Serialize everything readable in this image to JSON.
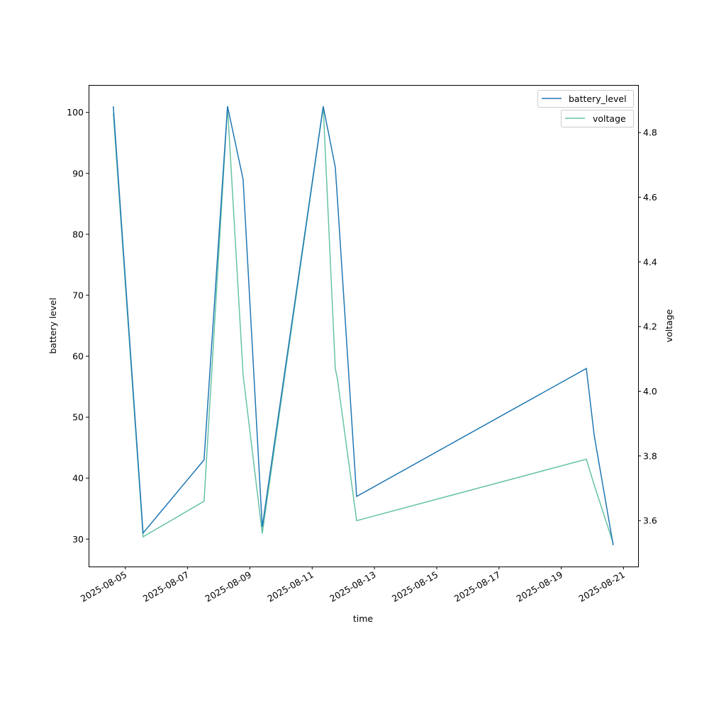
{
  "chart_data": {
    "type": "line",
    "title": "",
    "xlabel": "time",
    "ylabel": "battery level",
    "y2label": "voltage",
    "xlim": [
      "2025-08-03T19:40",
      "2025-08-21T11:15"
    ],
    "ylim": [
      25.5,
      104.5
    ],
    "y2lim": [
      3.458,
      4.947
    ],
    "grid": false,
    "legend_placement": "top-right",
    "x_ticks": [
      "2025-08-05",
      "2025-08-07",
      "2025-08-09",
      "2025-08-11",
      "2025-08-13",
      "2025-08-15",
      "2025-08-17",
      "2025-08-19",
      "2025-08-21"
    ],
    "y_ticks": [
      30,
      40,
      50,
      60,
      70,
      80,
      90,
      100
    ],
    "y2_ticks": [
      "3.6",
      "3.8",
      "4.0",
      "4.2",
      "4.4",
      "4.6",
      "4.8"
    ],
    "x": [
      "2025-08-04T14:40",
      "2025-08-05T13:40",
      "2025-08-07T12:40",
      "2025-08-08T06:45",
      "2025-08-08T18:45",
      "2025-08-09T09:30",
      "2025-08-11T08:30",
      "2025-08-11T17:50",
      "2025-08-11T19:25",
      "2025-08-12T10:15",
      "2025-08-19T19:20",
      "2025-08-20T01:25",
      "2025-08-20T16:05"
    ],
    "series": [
      {
        "name": "battery_level",
        "axis": "left",
        "color": "#1f77b4",
        "values": [
          101,
          31,
          43,
          101,
          89,
          32,
          101,
          91,
          86,
          37,
          58,
          47,
          29
        ]
      },
      {
        "name": "voltage",
        "axis": "right",
        "color": "#66c2a5",
        "values": [
          4.86,
          3.55,
          3.66,
          4.88,
          4.05,
          3.56,
          4.88,
          4.07,
          4.04,
          3.6,
          3.79,
          3.71,
          3.53
        ]
      }
    ]
  }
}
